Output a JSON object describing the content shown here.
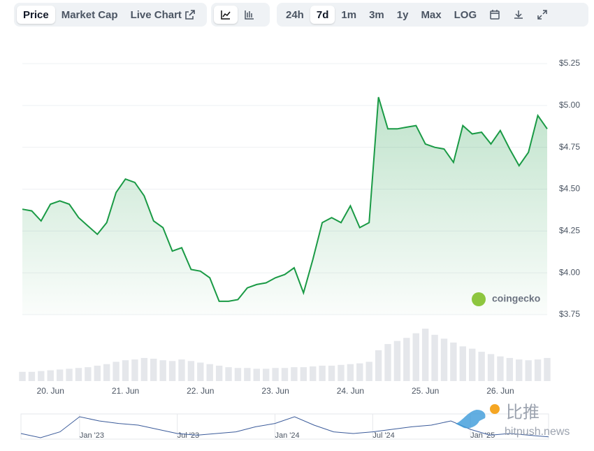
{
  "toolbar": {
    "tabs": [
      "Price",
      "Market Cap",
      "Live Chart"
    ],
    "ranges": [
      "24h",
      "7d",
      "1m",
      "3m",
      "1y",
      "Max",
      "LOG"
    ]
  },
  "chart_data": [
    {
      "type": "line",
      "color": "#1a9a45",
      "categories": [
        null,
        null,
        null,
        "20. Jun",
        null,
        null,
        null,
        null,
        null,
        null,
        null,
        "21. Jun",
        null,
        null,
        null,
        null,
        null,
        null,
        null,
        "22. Jun",
        null,
        null,
        null,
        null,
        null,
        null,
        null,
        "23. Jun",
        null,
        null,
        null,
        null,
        null,
        null,
        null,
        "24. Jun",
        null,
        null,
        null,
        null,
        null,
        null,
        null,
        "25. Jun",
        null,
        null,
        null,
        null,
        null,
        null,
        null,
        "26. Jun",
        null,
        null,
        null,
        null,
        null
      ],
      "values": [
        4.38,
        4.37,
        4.31,
        4.41,
        4.43,
        4.41,
        4.33,
        4.28,
        4.23,
        4.3,
        4.48,
        4.56,
        4.54,
        4.46,
        4.31,
        4.27,
        4.13,
        4.15,
        4.02,
        4.01,
        3.97,
        3.83,
        3.83,
        3.84,
        3.91,
        3.93,
        3.94,
        3.97,
        3.99,
        4.03,
        3.88,
        4.08,
        4.3,
        4.33,
        4.3,
        4.4,
        4.27,
        4.3,
        5.05,
        4.86,
        4.86,
        4.87,
        4.88,
        4.77,
        4.75,
        4.74,
        4.66,
        4.88,
        4.83,
        4.84,
        4.77,
        4.85,
        4.74,
        4.64,
        4.72,
        4.94,
        4.86
      ],
      "ylim": [
        3.75,
        5.25
      ],
      "yticks": [
        {
          "value": 3.75,
          "label": "$3.75"
        },
        {
          "value": 4.0,
          "label": "$4.00"
        },
        {
          "value": 4.25,
          "label": "$4.25"
        },
        {
          "value": 4.5,
          "label": "$4.50"
        },
        {
          "value": 4.75,
          "label": "$4.75"
        },
        {
          "value": 5.0,
          "label": "$5.00"
        },
        {
          "value": 5.25,
          "label": "$5.25"
        }
      ],
      "grid": true,
      "watermark": "coingecko"
    },
    {
      "type": "bar",
      "color": "#e5e7eb",
      "values": [
        12,
        12,
        13,
        14,
        15,
        16,
        17,
        18,
        20,
        22,
        25,
        27,
        28,
        30,
        29,
        27,
        26,
        28,
        26,
        24,
        22,
        20,
        18,
        17,
        17,
        16,
        16,
        17,
        17,
        18,
        18,
        19,
        20,
        20,
        21,
        22,
        23,
        25,
        40,
        48,
        52,
        56,
        62,
        68,
        60,
        55,
        50,
        45,
        42,
        38,
        35,
        32,
        30,
        28,
        27,
        28,
        30
      ]
    },
    {
      "type": "line",
      "color": "#3b5b9a",
      "categories": [
        null,
        null,
        null,
        "Jan '23",
        null,
        null,
        null,
        null,
        "Jul '23",
        null,
        null,
        null,
        null,
        "Jan '24",
        null,
        null,
        null,
        null,
        "Jul '24",
        null,
        null,
        null,
        null,
        "Jan '25",
        null,
        null,
        null,
        null
      ],
      "values": [
        20,
        15,
        22,
        40,
        35,
        32,
        30,
        25,
        20,
        18,
        20,
        22,
        28,
        32,
        40,
        30,
        22,
        20,
        22,
        25,
        28,
        30,
        35,
        25,
        18,
        20,
        18,
        16
      ]
    }
  ],
  "watermark": {
    "title": "比推",
    "site": "bitpush.news"
  }
}
